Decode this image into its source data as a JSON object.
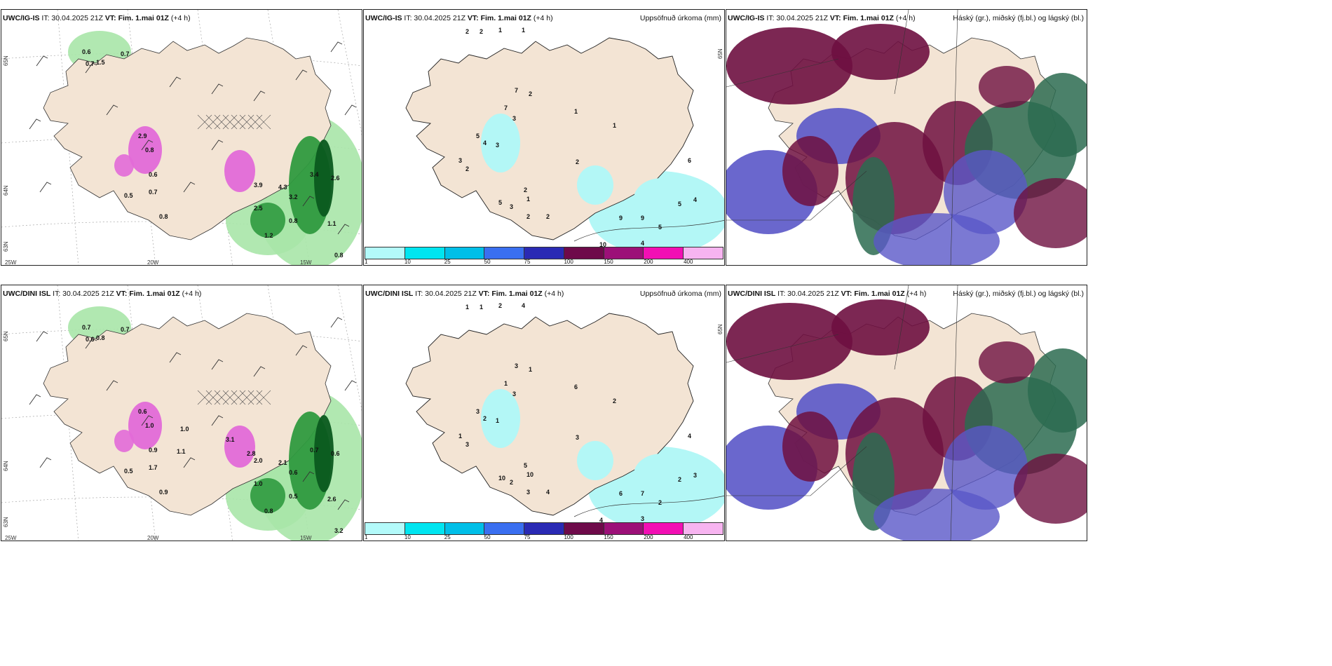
{
  "rows": [
    {
      "panels": [
        {
          "type": "wind-precip",
          "header_model": "UWC/IG-IS",
          "header_it": "IT: 30.04.2025 21Z",
          "header_vt": "VT: Fim. 1.mai 01Z",
          "header_lead": "(+4 h)",
          "lat_labels": [
            "65N",
            "64N",
            "63N"
          ],
          "lon_labels": [
            "25W",
            "20W",
            "15W"
          ],
          "values": [
            "0.6",
            "0.7",
            "0.7",
            "1.5",
            "2.9",
            "0.8",
            "0.6",
            "0.5",
            "0.7",
            "0.8",
            "3.9",
            "4.3",
            "3.2",
            "2.5",
            "1.2",
            "0.8",
            "3.4",
            "2.6",
            "1.1",
            "0.8"
          ]
        },
        {
          "type": "accum-precip",
          "header_model": "UWC/IG-IS",
          "header_it": "IT: 30.04.2025 21Z",
          "header_vt": "VT: Fim. 1.mai 01Z",
          "header_lead": "(+4 h)",
          "title_right": "Uppsöfnuð úrkoma (mm)",
          "lat_label": "65N",
          "values": [
            "2",
            "2",
            "1",
            "1",
            "7",
            "2",
            "7",
            "3",
            "5",
            "4",
            "3",
            "3",
            "2",
            "2",
            "1",
            "5",
            "3",
            "2",
            "2",
            "9",
            "9",
            "10",
            "4",
            "5",
            "5",
            "4",
            "6",
            "2",
            "1",
            "1"
          ]
        },
        {
          "type": "cloud",
          "header_model": "UWC/IG-IS",
          "header_it": "IT: 30.04.2025 21Z",
          "header_vt": "VT: Fim. 1.mai 01Z",
          "header_lead": "(+4 h)",
          "title_right": "Háský (gr.), miðský (fj.bl.) og lágský (bl.)"
        }
      ]
    },
    {
      "panels": [
        {
          "type": "wind-precip",
          "header_model": "UWC/DINI ISL",
          "header_it": "IT: 30.04.2025 21Z",
          "header_vt": "VT: Fim. 1.mai 01Z",
          "header_lead": "(+4 h)",
          "lat_labels": [
            "65N",
            "64N",
            "63N"
          ],
          "lon_labels": [
            "25W",
            "20W",
            "15W"
          ],
          "values": [
            "0.7",
            "0.7",
            "0.6",
            "0.8",
            "0.6",
            "1.0",
            "0.9",
            "0.5",
            "1.7",
            "0.9",
            "2.0",
            "2.1",
            "0.6",
            "1.0",
            "0.8",
            "0.5",
            "0.7",
            "0.6",
            "2.6",
            "3.2",
            "1.1",
            "1.0",
            "3.1",
            "2.8"
          ]
        },
        {
          "type": "accum-precip",
          "header_model": "UWC/DINI ISL",
          "header_it": "IT: 30.04.2025 21Z",
          "header_vt": "VT: Fim. 1.mai 01Z",
          "header_lead": "(+4 h)",
          "title_right": "Uppsöfnuð úrkoma (mm)",
          "lat_label": "65N",
          "values": [
            "1",
            "1",
            "2",
            "4",
            "3",
            "1",
            "1",
            "3",
            "3",
            "2",
            "1",
            "1",
            "3",
            "5",
            "10",
            "10",
            "2",
            "3",
            "4",
            "6",
            "7",
            "4",
            "3",
            "2",
            "2",
            "3",
            "4",
            "3",
            "6",
            "2"
          ]
        },
        {
          "type": "cloud",
          "header_model": "UWC/DINI ISL",
          "header_it": "IT: 30.04.2025 21Z",
          "header_vt": "VT: Fim. 1.mai 01Z",
          "header_lead": "(+4 h)",
          "title_right": "Háský (gr.), miðský (fj.bl.) og lágský (bl.)"
        }
      ]
    }
  ],
  "legend": {
    "ticks": [
      "1",
      "10",
      "25",
      "50",
      "75",
      "100",
      "150",
      "200",
      "400"
    ],
    "colors": [
      "#b3fafa",
      "#00e5f0",
      "#00bfe8",
      "#3a6ff0",
      "#2a2ab4",
      "#6e0a4a",
      "#9c1078",
      "#f20fb4",
      "#f7b4f0"
    ]
  },
  "colors": {
    "land": "#f3e4d4",
    "sea_bg": "#ffffff",
    "precip_light": "#a8e6a8",
    "precip_mid": "#2f9a3f",
    "precip_dark": "#0b5a1f",
    "snow_magenta": "#e26ad8",
    "accum_cyan": "#b3f7f6",
    "cloud_high": "#6e1040",
    "cloud_mid": "#5a57c8",
    "cloud_low": "#2b6b50"
  }
}
